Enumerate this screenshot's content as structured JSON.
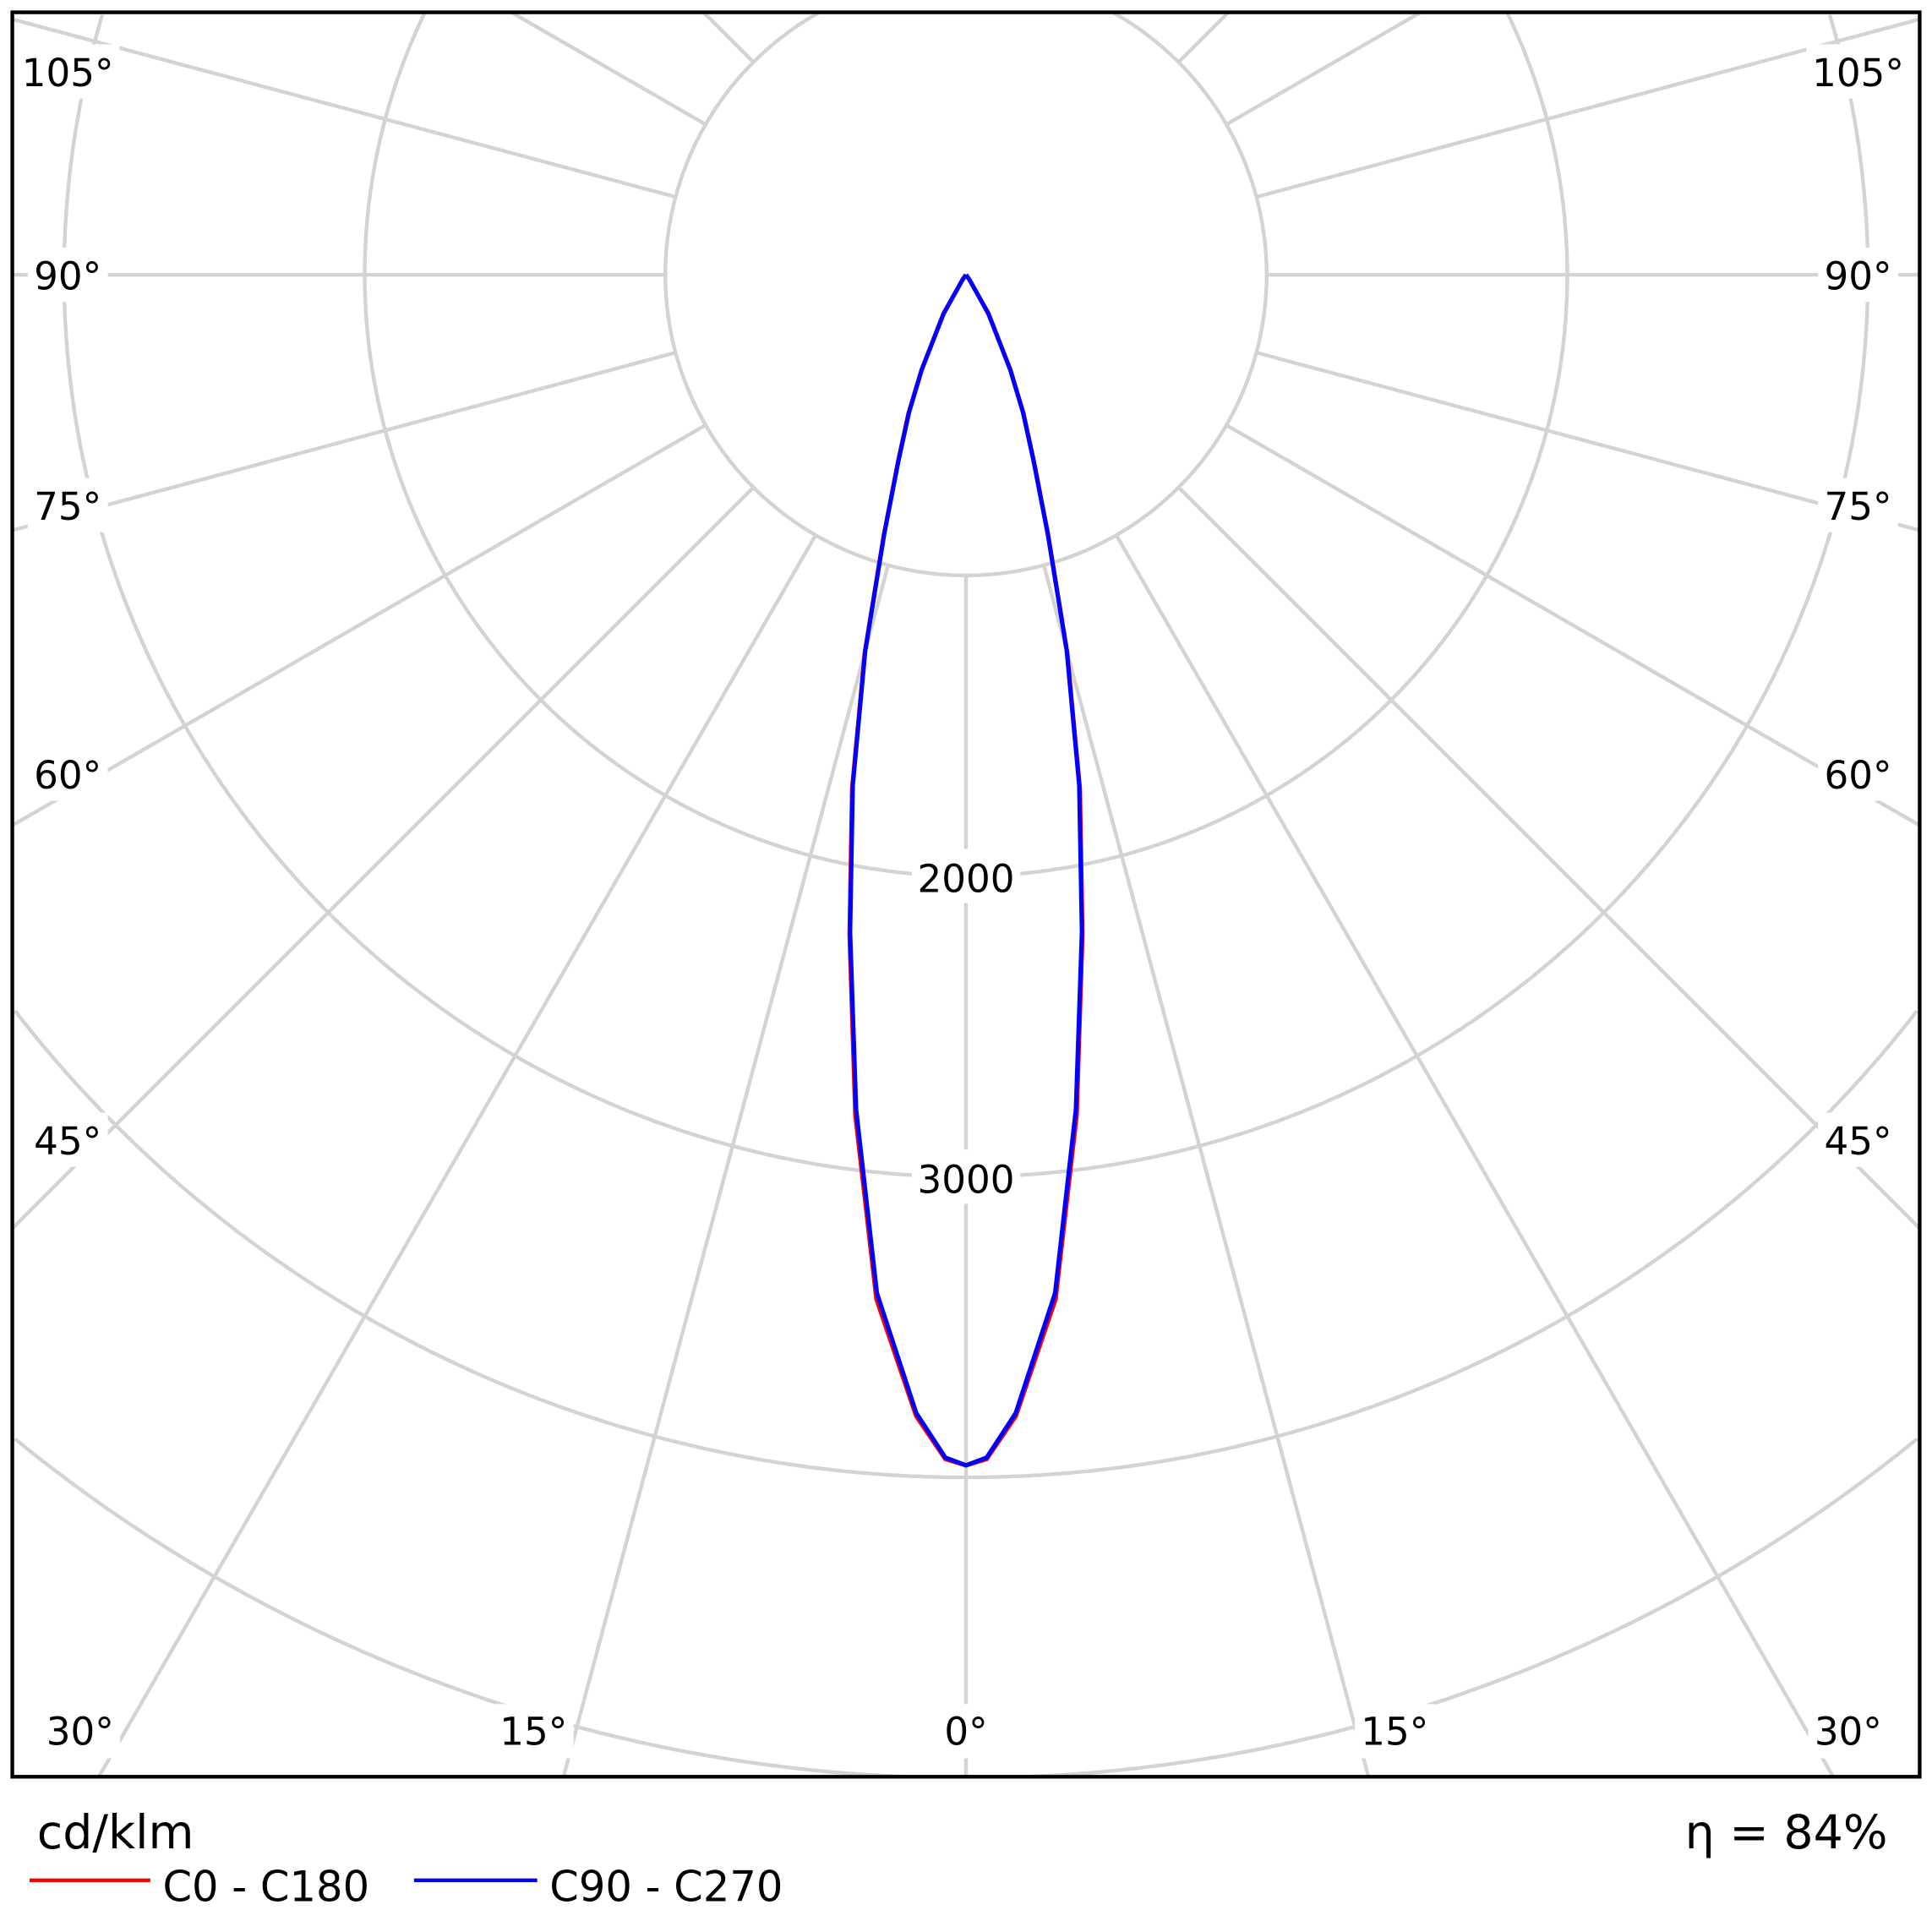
{
  "chart_data": {
    "type": "polar",
    "unit_label": "cd/klm",
    "efficiency_label": "η = 84%",
    "radial_tick_labels": [
      "2000",
      "3000"
    ],
    "radial_step": 1000,
    "grid": true,
    "angle_tick_labels": {
      "sides": [
        "105°",
        "90°",
        "75°",
        "60°",
        "45°"
      ],
      "bottom": [
        "30°",
        "15°",
        "0°",
        "15°",
        "30°"
      ]
    },
    "legend_placement": "bottom-left",
    "angles_deg": [
      0,
      1,
      2.5,
      5,
      7.5,
      10,
      12.5,
      15,
      17.5,
      20,
      22.5,
      25,
      30,
      35,
      40
    ],
    "series": [
      {
        "name": "C0 - C180",
        "color": "#ff0000",
        "values": [
          3960,
          3940,
          3800,
          3420,
          2820,
          2230,
          1750,
          1300,
          910,
          660,
          500,
          350,
          150,
          20,
          0
        ]
      },
      {
        "name": "C90 - C270",
        "color": "#0000ff",
        "values": [
          3960,
          3935,
          3790,
          3400,
          2800,
          2220,
          1740,
          1295,
          905,
          655,
          495,
          348,
          148,
          20,
          0
        ]
      }
    ]
  }
}
